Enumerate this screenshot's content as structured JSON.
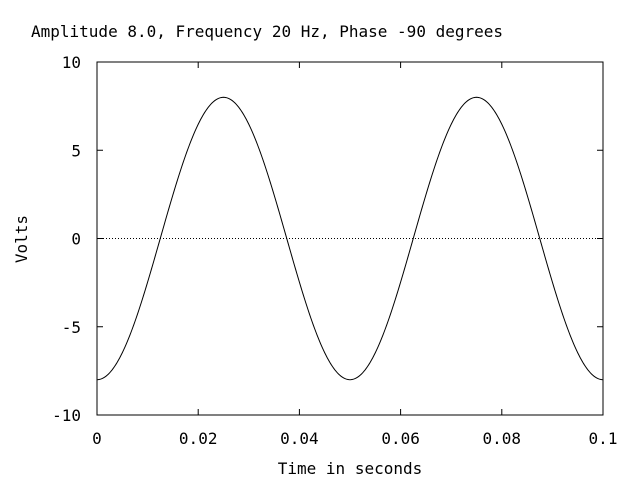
{
  "chart_data": {
    "type": "line",
    "title": "Amplitude 8.0, Frequency 20 Hz, Phase -90 degrees",
    "xlabel": "Time in seconds",
    "ylabel": "Volts",
    "xlim": [
      0,
      0.1
    ],
    "ylim": [
      -10,
      10
    ],
    "x_ticks": [
      0,
      0.02,
      0.04,
      0.06,
      0.08,
      0.1
    ],
    "x_tick_labels": [
      "0",
      "0.02",
      "0.04",
      "0.06",
      "0.08",
      "0.1"
    ],
    "y_ticks": [
      -10,
      -5,
      0,
      5,
      10
    ],
    "y_tick_labels": [
      "-10",
      "-5",
      "0",
      "5",
      "10"
    ],
    "grid": false,
    "zero_line": {
      "y": 0,
      "style": "dotted"
    },
    "series": [
      {
        "amplitude": 8.0,
        "frequency_hz": 20,
        "phase_degrees": -90,
        "color": "#000000",
        "x": [
          0,
          0.00625,
          0.0125,
          0.01875,
          0.025,
          0.03125,
          0.0375,
          0.04375,
          0.05,
          0.05625,
          0.0625,
          0.06875,
          0.075,
          0.08125,
          0.0875,
          0.09375,
          0.1
        ],
        "y": [
          -8.0,
          -5.657,
          0.0,
          5.657,
          8.0,
          5.657,
          0.0,
          -5.657,
          -8.0,
          -5.657,
          0.0,
          5.657,
          8.0,
          5.657,
          0.0,
          -5.657,
          -8.0
        ]
      }
    ]
  }
}
